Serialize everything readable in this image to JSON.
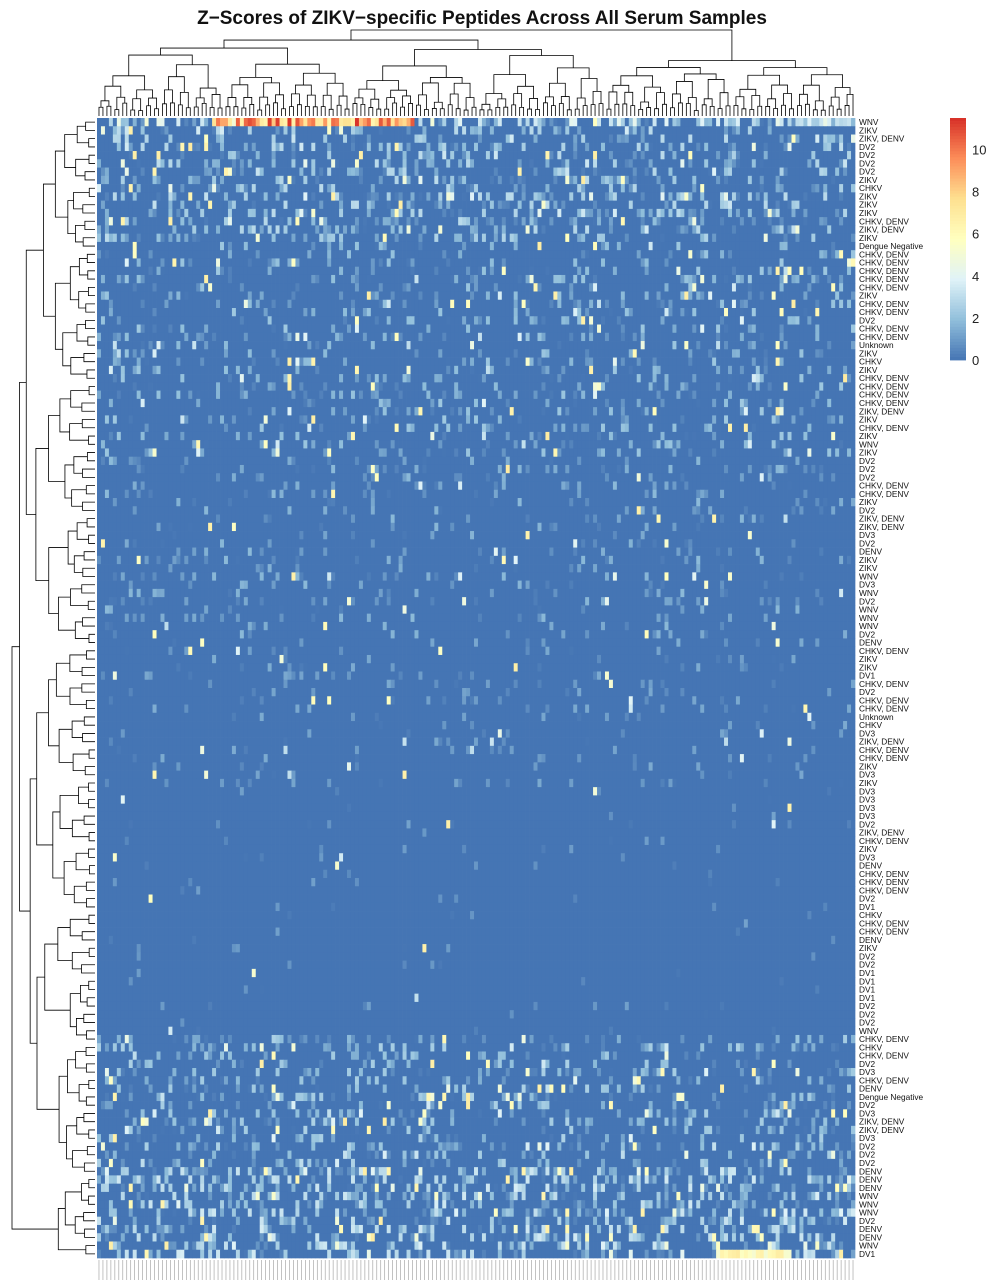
{
  "chart_data": {
    "type": "heatmap",
    "title": "Z−Scores of ZIKV−specific Peptides Across All Serum Samples",
    "xlabel": "",
    "ylabel": "",
    "color_scale": {
      "range": [
        0,
        11.5
      ],
      "ticks": [
        0,
        2,
        4,
        6,
        8,
        10
      ],
      "colors": [
        "#4575b4",
        "#91bfdb",
        "#e0f3f8",
        "#ffffbf",
        "#fee090",
        "#fc8d59",
        "#d73027"
      ]
    },
    "row_labels": [
      "WNV",
      "ZIKV",
      "ZIKV, DENV",
      "DV2",
      "DV2",
      "DV2",
      "DV2",
      "ZIKV",
      "CHKV",
      "ZIKV",
      "ZIKV",
      "ZIKV",
      "CHKV, DENV",
      "ZIKV, DENV",
      "ZIKV",
      "Dengue Negative",
      "CHKV, DENV",
      "CHKV, DENV",
      "CHKV, DENV",
      "CHKV, DENV",
      "CHKV, DENV",
      "ZIKV",
      "CHKV, DENV",
      "CHKV, DENV",
      "DV2",
      "CHKV, DENV",
      "CHKV, DENV",
      "Unknown",
      "ZIKV",
      "CHKV",
      "ZIKV",
      "CHKV, DENV",
      "CHKV, DENV",
      "CHKV, DENV",
      "CHKV, DENV",
      "ZIKV, DENV",
      "ZIKV",
      "CHKV, DENV",
      "ZIKV",
      "WNV",
      "ZIKV",
      "DV2",
      "DV2",
      "DV2",
      "CHKV, DENV",
      "CHKV, DENV",
      "ZIKV",
      "DV2",
      "ZIKV, DENV",
      "ZIKV, DENV",
      "DV3",
      "DV2",
      "DENV",
      "ZIKV",
      "ZIKV",
      "WNV",
      "DV3",
      "WNV",
      "DV2",
      "WNV",
      "WNV",
      "WNV",
      "DV2",
      "DENV",
      "CHKV, DENV",
      "ZIKV",
      "ZIKV",
      "DV1",
      "CHKV, DENV",
      "DV2",
      "CHKV, DENV",
      "CHKV, DENV",
      "Unknown",
      "CHKV",
      "DV3",
      "ZIKV, DENV",
      "CHKV, DENV",
      "CHKV, DENV",
      "ZIKV",
      "DV3",
      "ZIKV",
      "DV3",
      "DV3",
      "DV3",
      "DV3",
      "DV2",
      "ZIKV, DENV",
      "CHKV, DENV",
      "ZIKV",
      "DV3",
      "DENV",
      "CHKV, DENV",
      "CHKV, DENV",
      "CHKV, DENV",
      "DV2",
      "DV1",
      "CHKV",
      "CHKV, DENV",
      "CHKV, DENV",
      "DENV",
      "ZIKV",
      "DV2",
      "DV2",
      "DV1",
      "DV1",
      "DV1",
      "DV1",
      "DV2",
      "DV2",
      "DV2",
      "WNV",
      "CHKV, DENV",
      "CHKV",
      "CHKV, DENV",
      "DV2",
      "DV3",
      "CHKV, DENV",
      "DENV",
      "Dengue Negative",
      "DV2",
      "DV3",
      "ZIKV, DENV",
      "ZIKV, DENV",
      "DV3",
      "DV2",
      "DV2",
      "DV2",
      "DENV",
      "DENV",
      "DENV",
      "WNV",
      "WNV",
      "WNV",
      "DV2",
      "DENV",
      "DENV",
      "WNV",
      "DV1"
    ],
    "n_columns": 191,
    "notes": "Hierarchically clustered heatmap; row and column dendrograms shown. Column (peptide) labels are illegible at this resolution."
  }
}
